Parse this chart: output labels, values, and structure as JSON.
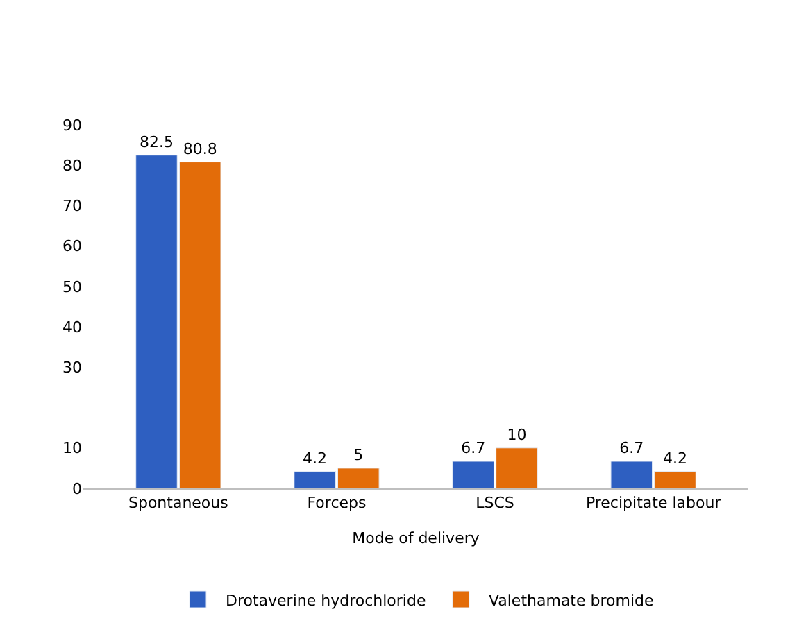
{
  "chart_data": {
    "type": "bar",
    "xlabel": "Mode of delivery",
    "categories": [
      "Spontaneous",
      "Forceps",
      "LSCS",
      "Precipitate labour"
    ],
    "series": [
      {
        "name": "Drotaverine hydrochloride",
        "color": "#2e5fc1",
        "values": [
          82.5,
          4.2,
          6.7,
          6.7
        ]
      },
      {
        "name": "Valethamate bromide",
        "color": "#e36c09",
        "values": [
          80.8,
          5,
          10,
          4.2
        ]
      }
    ],
    "ylim": [
      0,
      90
    ],
    "yticks": [
      0,
      10,
      30,
      40,
      50,
      60,
      70,
      80,
      90
    ],
    "data_labels": true,
    "legend": "bottom"
  }
}
